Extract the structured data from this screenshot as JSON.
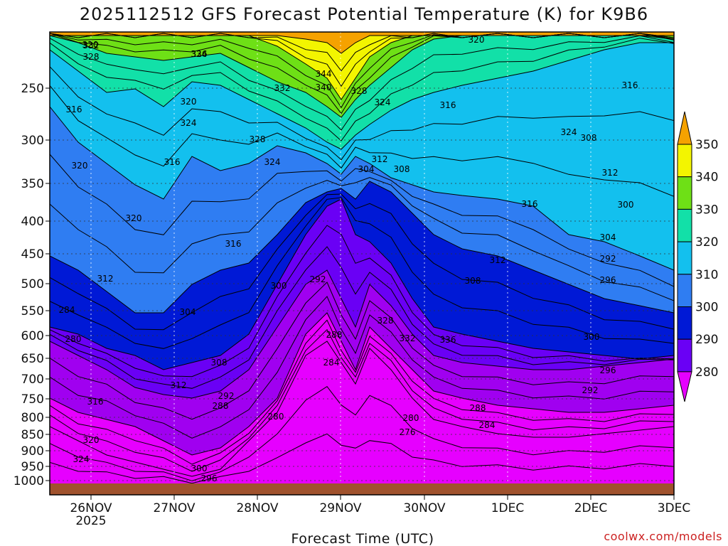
{
  "chart_data": {
    "type": "heatmap",
    "title": "2025112512 GFS Forecast Potential Temperature (K) for K9B6",
    "xlabel": "Forecast Time (UTC)",
    "x_ticks": [
      "26NOV",
      "27NOV",
      "28NOV",
      "29NOV",
      "30NOV",
      "1DEC",
      "2DEC",
      "3DEC"
    ],
    "x_year_label": "2025",
    "y_ticks": [
      "250",
      "300",
      "350",
      "400",
      "450",
      "500",
      "550",
      "600",
      "650",
      "700",
      "750",
      "800",
      "850",
      "900",
      "950",
      "1000"
    ],
    "y_axis": "pressure (hPa), decreasing upward",
    "ylim": [
      1000,
      200
    ],
    "color_levels": [
      280,
      290,
      300,
      310,
      320,
      330,
      340,
      350
    ],
    "colorbar_labels": [
      "350",
      "340",
      "330",
      "320",
      "310",
      "300",
      "290",
      "280"
    ],
    "color_bands": [
      {
        "range": "<280",
        "color": "#e600ff"
      },
      {
        "range": "280-290",
        "color": "#a000f0"
      },
      {
        "range": "290-300",
        "color": "#6a00f5"
      },
      {
        "range": "300-310",
        "color": "#0019d6"
      },
      {
        "range": "310-320",
        "color": "#2f7df2"
      },
      {
        "range": "320-330",
        "color": "#13c0ee"
      },
      {
        "range": "330-340",
        "color": "#12e0a8"
      },
      {
        "range": ">340",
        "color": "#1ed27a"
      },
      {
        "range": "upper",
        "color": "#6ee016"
      },
      {
        "range": "top",
        "color": "#f3f500"
      },
      {
        "range": "max",
        "color": "#f5a200"
      }
    ],
    "contour_interval": 4,
    "contour_labels": [
      "332",
      "328",
      "336",
      "344",
      "340",
      "332",
      "328",
      "324",
      "316",
      "320",
      "324",
      "328",
      "324",
      "320",
      "316",
      "320",
      "316",
      "312",
      "304",
      "308",
      "312",
      "316",
      "320",
      "324",
      "316",
      "312",
      "308",
      "300",
      "292",
      "288",
      "284",
      "280",
      "276",
      "280",
      "284",
      "288",
      "292",
      "296",
      "300",
      "304",
      "308",
      "312",
      "316",
      "320",
      "324",
      "300",
      "296",
      "292",
      "288",
      "284",
      "280",
      "296",
      "292",
      "304",
      "300",
      "312",
      "308",
      "316",
      "320",
      "324",
      "328",
      "332",
      "336"
    ],
    "ground_color": "#a0522d",
    "grid": true,
    "credit": "coolwx.com/models"
  }
}
